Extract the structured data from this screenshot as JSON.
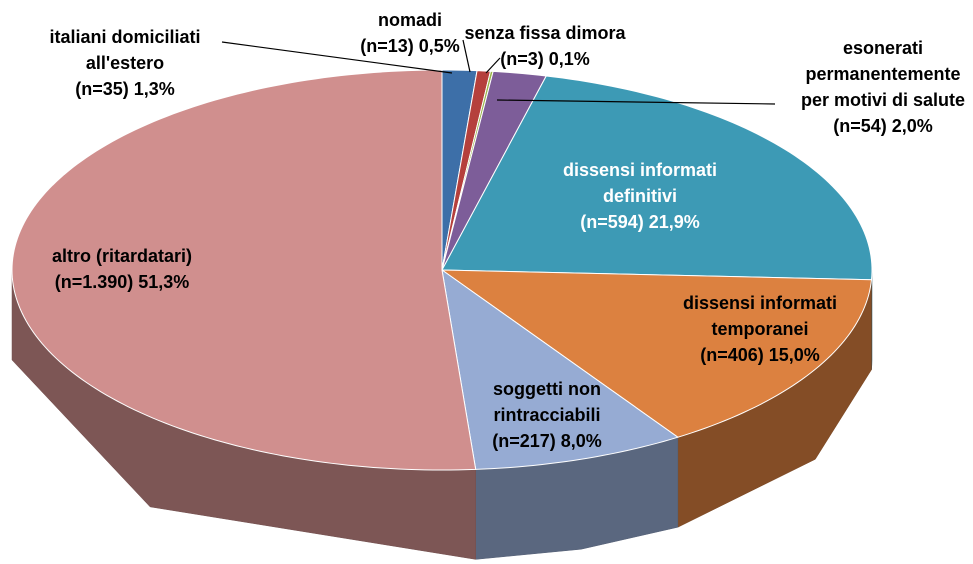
{
  "chart_data": {
    "type": "pie",
    "categories": [
      "italiani domiciliati all'estero",
      "nomadi",
      "senza fissa dimora",
      "esonerati permanentemente per motivi di salute",
      "dissensi informati definitivi",
      "dissensi informati temporanei",
      "soggetti non rintracciabili",
      "altro (ritardatari)"
    ],
    "values": [
      1.3,
      0.5,
      0.1,
      2.0,
      21.9,
      15.0,
      8.0,
      51.3
    ],
    "value_labels": [
      "(n=35) 1,3%",
      "(n=13) 0,5%",
      "(n=3) 0,1%",
      "(n=54) 2,0%",
      "(n=594) 21,9%",
      "(n=406) 15,0%",
      "(n=217) 8,0%",
      "(n=1.390) 51,3%"
    ],
    "colors": [
      "#3d6fa8",
      "#b5403c",
      "#9ab64a",
      "#7d5d99",
      "#3d9ab5",
      "#dc8140",
      "#96abd3",
      "#d08f8e"
    ]
  }
}
